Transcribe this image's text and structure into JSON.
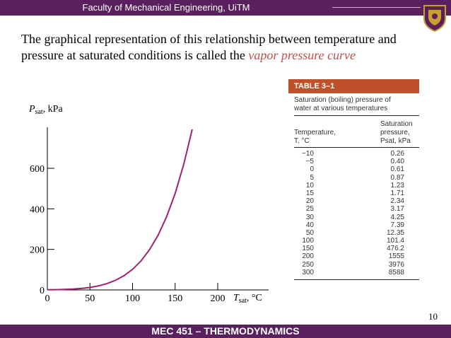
{
  "header": {
    "institution": "Faculty of Mechanical Engineering, UiTM"
  },
  "intro": {
    "text": "The graphical representation of this relationship between temperature and pressure at saturated conditions is called the ",
    "emphasis": "vapor pressure curve"
  },
  "chart_data": {
    "type": "line",
    "ylabel_main": "P",
    "ylabel_sub": "sat",
    "ylabel_unit": ", kPa",
    "xlabel_main": "T",
    "xlabel_sub": "sat",
    "xlabel_unit": ", °C",
    "xlim": [
      0,
      200
    ],
    "ylim": [
      0,
      600
    ],
    "x_ticks": [
      "0",
      "50",
      "100",
      "150",
      "200"
    ],
    "y_ticks": [
      "0",
      "200",
      "400",
      "600"
    ],
    "series": [
      {
        "x": [
          0,
          10,
          20,
          30,
          40,
          50,
          60,
          70,
          80,
          90,
          100,
          110,
          120,
          130,
          140,
          150,
          160,
          170
        ],
        "y": [
          0.61,
          1.23,
          2.34,
          4.25,
          7.39,
          12.35,
          19.9,
          31.2,
          47.4,
          70.2,
          101.4,
          143.4,
          198.7,
          270.3,
          361.5,
          476.2,
          618,
          792
        ]
      }
    ],
    "line_color": "#a0206e"
  },
  "table": {
    "title": "TABLE 3–1",
    "caption_line1": "Saturation (boiling) pressure of",
    "caption_line2": "water at various temperatures",
    "col1_line1": "Temperature,",
    "col1_line2": "T, °C",
    "col2_line1": "Saturation",
    "col2_line2": "pressure,",
    "col2_line3": "Psat, kPa",
    "rows": [
      [
        "−10",
        "0.26"
      ],
      [
        "−5",
        "0.40"
      ],
      [
        "0",
        "0.61"
      ],
      [
        "5",
        "0.87"
      ],
      [
        "10",
        "1.23"
      ],
      [
        "15",
        "1.71"
      ],
      [
        "20",
        "2.34"
      ],
      [
        "25",
        "3.17"
      ],
      [
        "30",
        "4.25"
      ],
      [
        "40",
        "7.39"
      ],
      [
        "50",
        "12.35"
      ],
      [
        "100",
        "101.4"
      ],
      [
        "150",
        "476.2"
      ],
      [
        "200",
        "1555"
      ],
      [
        "250",
        "3976"
      ],
      [
        "300",
        "8588"
      ]
    ]
  },
  "footer": {
    "course": "MEC 451 – THERMODYNAMICS",
    "page": "10"
  }
}
